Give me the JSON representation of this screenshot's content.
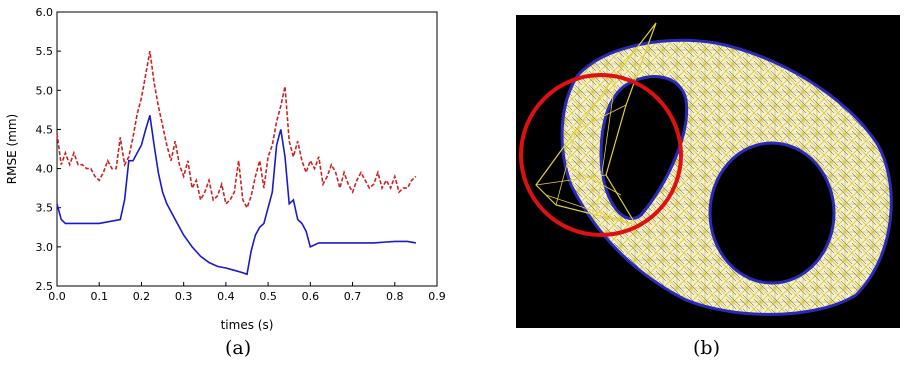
{
  "captions": {
    "a": "(a)",
    "b": "(b)"
  },
  "chart_data": {
    "type": "line",
    "xlabel": "times (s)",
    "ylabel": "RMSE (mm)",
    "xlim": [
      0.0,
      0.9
    ],
    "ylim": [
      2.5,
      6.0
    ],
    "xticks": [
      "0.0",
      "0.1",
      "0.2",
      "0.3",
      "0.4",
      "0.5",
      "0.6",
      "0.7",
      "0.8",
      "0.9"
    ],
    "yticks": [
      "2.5",
      "3.0",
      "3.5",
      "4.0",
      "4.5",
      "5.0",
      "5.5",
      "6.0"
    ],
    "grid": false,
    "series": [
      {
        "color": "#cc2222",
        "dash": "dashed",
        "x": [
          0.0,
          0.01,
          0.02,
          0.03,
          0.04,
          0.05,
          0.06,
          0.07,
          0.08,
          0.09,
          0.1,
          0.11,
          0.12,
          0.13,
          0.14,
          0.15,
          0.16,
          0.17,
          0.18,
          0.19,
          0.2,
          0.21,
          0.22,
          0.23,
          0.24,
          0.25,
          0.26,
          0.27,
          0.28,
          0.29,
          0.3,
          0.31,
          0.32,
          0.33,
          0.34,
          0.35,
          0.36,
          0.37,
          0.38,
          0.39,
          0.4,
          0.41,
          0.42,
          0.43,
          0.44,
          0.45,
          0.46,
          0.47,
          0.48,
          0.49,
          0.5,
          0.51,
          0.52,
          0.53,
          0.54,
          0.55,
          0.56,
          0.57,
          0.58,
          0.59,
          0.6,
          0.61,
          0.62,
          0.63,
          0.64,
          0.65,
          0.66,
          0.67,
          0.68,
          0.69,
          0.7,
          0.71,
          0.72,
          0.73,
          0.74,
          0.75,
          0.76,
          0.77,
          0.78,
          0.79,
          0.8,
          0.81,
          0.82,
          0.83,
          0.84,
          0.85
        ],
        "y": [
          4.45,
          4.05,
          4.2,
          4.05,
          4.2,
          4.05,
          4.05,
          4.0,
          4.0,
          3.9,
          3.85,
          3.95,
          4.1,
          4.0,
          4.0,
          4.4,
          4.05,
          4.15,
          4.4,
          4.7,
          4.9,
          5.2,
          5.5,
          5.1,
          4.8,
          4.55,
          4.3,
          4.1,
          4.35,
          4.05,
          3.9,
          4.1,
          3.75,
          3.85,
          3.6,
          3.7,
          3.85,
          3.6,
          3.65,
          3.8,
          3.55,
          3.6,
          3.7,
          4.1,
          3.6,
          3.5,
          3.65,
          3.9,
          4.1,
          3.75,
          4.15,
          4.3,
          4.6,
          4.8,
          5.05,
          4.35,
          4.15,
          4.35,
          4.1,
          3.95,
          4.1,
          4.0,
          4.15,
          3.8,
          3.9,
          4.05,
          3.95,
          3.75,
          3.95,
          3.8,
          3.7,
          3.85,
          3.95,
          3.85,
          3.75,
          3.8,
          3.95,
          3.75,
          3.85,
          3.75,
          3.9,
          3.7,
          3.75,
          3.75,
          3.85,
          3.9
        ]
      },
      {
        "color": "#1a1acc",
        "dash": "solid",
        "x": [
          0.0,
          0.01,
          0.02,
          0.05,
          0.1,
          0.15,
          0.16,
          0.17,
          0.18,
          0.19,
          0.2,
          0.21,
          0.22,
          0.23,
          0.24,
          0.25,
          0.26,
          0.27,
          0.28,
          0.29,
          0.3,
          0.32,
          0.34,
          0.36,
          0.38,
          0.4,
          0.42,
          0.44,
          0.45,
          0.46,
          0.47,
          0.48,
          0.49,
          0.5,
          0.51,
          0.52,
          0.53,
          0.54,
          0.55,
          0.56,
          0.57,
          0.58,
          0.59,
          0.6,
          0.62,
          0.65,
          0.7,
          0.75,
          0.8,
          0.83,
          0.85
        ],
        "y": [
          3.55,
          3.35,
          3.3,
          3.3,
          3.3,
          3.35,
          3.6,
          4.1,
          4.1,
          4.2,
          4.3,
          4.5,
          4.68,
          4.3,
          3.95,
          3.7,
          3.55,
          3.45,
          3.35,
          3.25,
          3.15,
          3.0,
          2.88,
          2.8,
          2.75,
          2.73,
          2.7,
          2.67,
          2.65,
          2.95,
          3.15,
          3.25,
          3.3,
          3.5,
          3.7,
          4.3,
          4.5,
          4.15,
          3.55,
          3.6,
          3.35,
          3.3,
          3.2,
          3.0,
          3.05,
          3.05,
          3.05,
          3.05,
          3.07,
          3.07,
          3.05
        ]
      }
    ]
  }
}
